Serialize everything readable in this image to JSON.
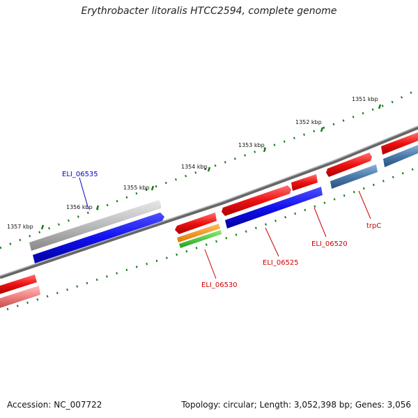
{
  "title": "Erythrobacter litoralis HTCC2594, complete genome",
  "footer": {
    "accession": "Accession: NC_007722",
    "info": "Topology: circular; Length: 3,052,398 bp; Genes: 3,056"
  },
  "ticks": {
    "t1351": "1351 kbp",
    "t1352": "1352 kbp",
    "t1353": "1353 kbp",
    "t1354": "1354 kbp",
    "t1355": "1355 kbp",
    "t1356": "1356 kbp",
    "t1357": "1357 kbp"
  },
  "genes": {
    "eli06535": "ELI_06535",
    "eli06530": "ELI_06530",
    "eli06525": "ELI_06525",
    "eli06520": "ELI_06520",
    "trpc": "trpC"
  },
  "colors": {
    "backbone": "#777777",
    "tick": "#1a7a1a",
    "cds_red": "#ee1111",
    "cds_blue": "#1010ee",
    "steel_blue": "#4a7aaa",
    "gene_grey": "#bbbbbb",
    "label_red": "#cc0000",
    "label_blue": "#0000cc"
  }
}
